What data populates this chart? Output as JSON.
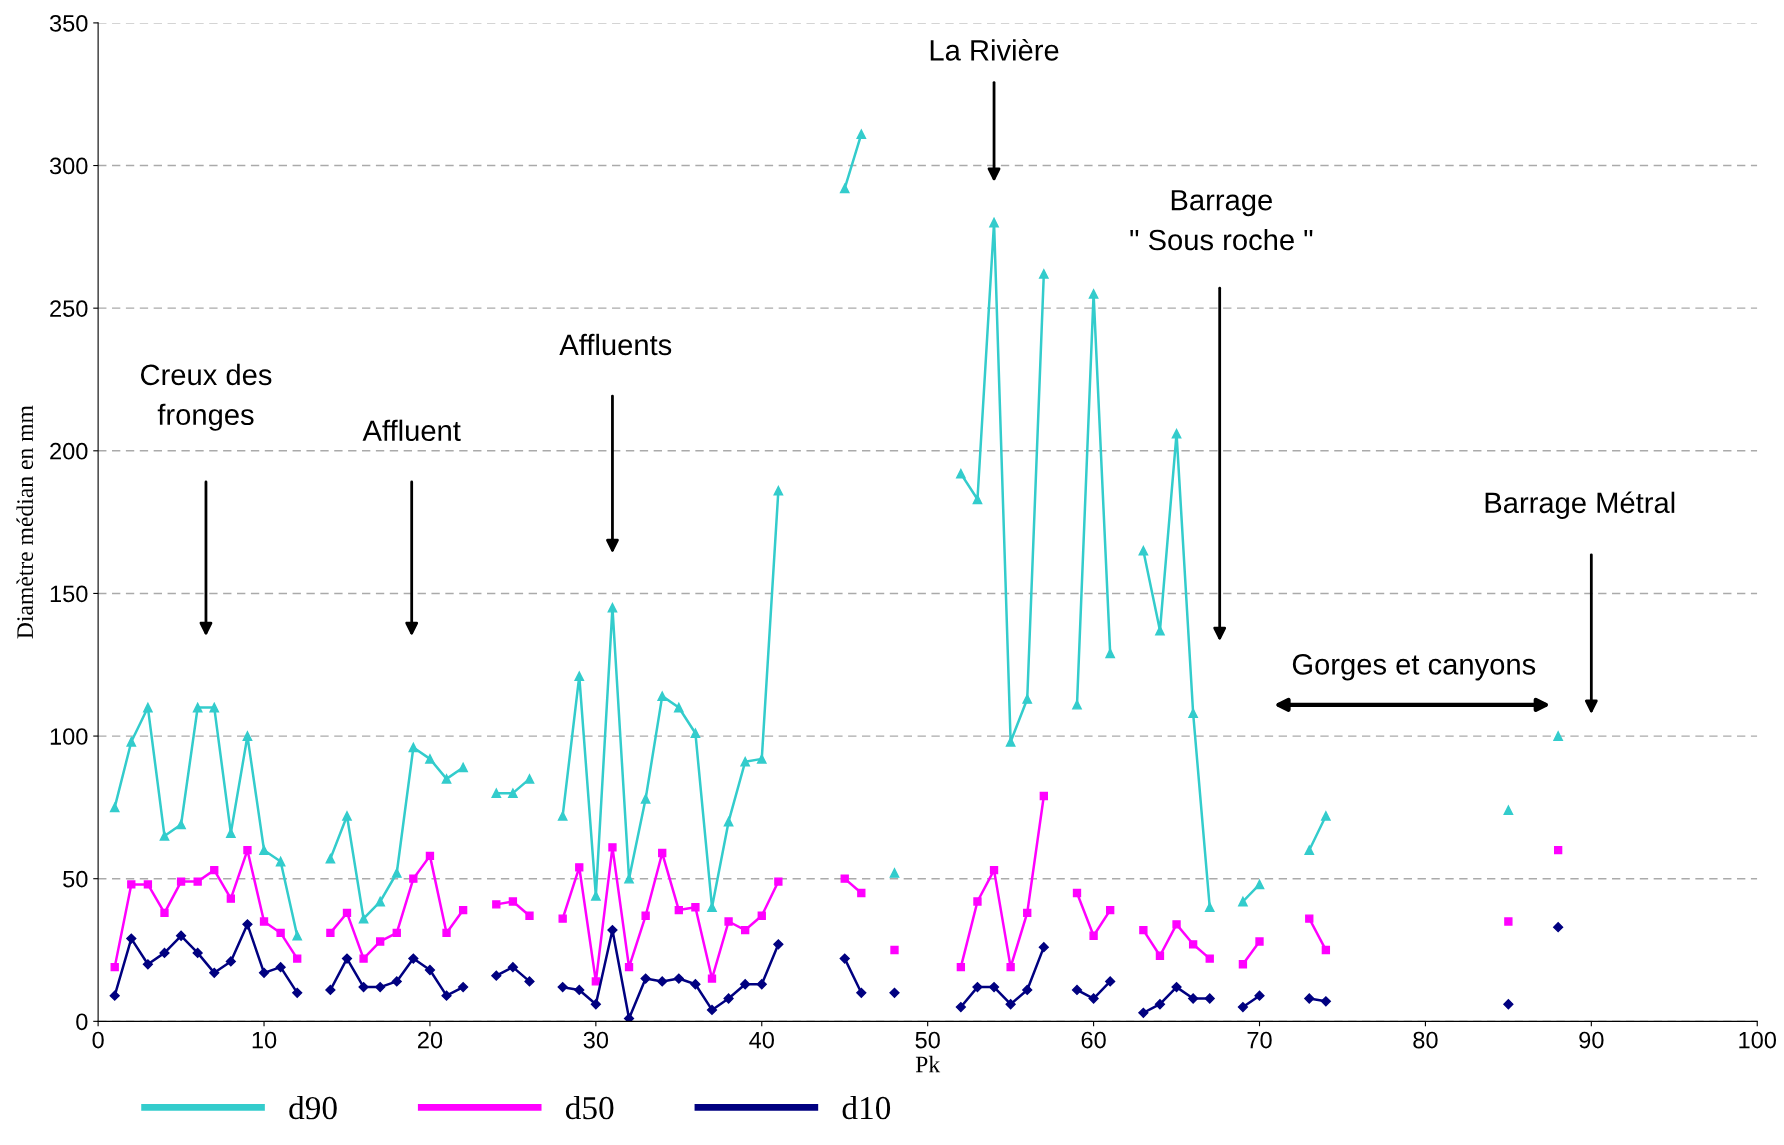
{
  "chart_data": {
    "type": "line",
    "xlabel": "Pk",
    "ylabel": "Diamètre médian en mm",
    "x": [
      1,
      2,
      3,
      4,
      5,
      6,
      7,
      8,
      9,
      10,
      11,
      12,
      13,
      14,
      15,
      16,
      17,
      18,
      19,
      20,
      21,
      22,
      23,
      24,
      25,
      26,
      27,
      28,
      29,
      30,
      31,
      32,
      33,
      34,
      35,
      36,
      37,
      38,
      39,
      40,
      41,
      42,
      43,
      44,
      45,
      46,
      47,
      48,
      49,
      50,
      51,
      52,
      53,
      54,
      55,
      56,
      57,
      58,
      59,
      60,
      61,
      62,
      63,
      64,
      65,
      66,
      67,
      68,
      69,
      70,
      71,
      72,
      73,
      74,
      75,
      76,
      77,
      78,
      79,
      80,
      81,
      82,
      83,
      84,
      85,
      86,
      87,
      88
    ],
    "series": [
      {
        "name": "d90",
        "color": "#33cccc",
        "marker": "triangle",
        "values": [
          75,
          98,
          110,
          65,
          69,
          110,
          110,
          66,
          100,
          60,
          56,
          30,
          null,
          57,
          72,
          36,
          42,
          52,
          96,
          92,
          85,
          89,
          null,
          80,
          80,
          85,
          null,
          72,
          121,
          44,
          145,
          50,
          78,
          114,
          110,
          101,
          40,
          70,
          91,
          92,
          186,
          null,
          null,
          null,
          292,
          311,
          null,
          52,
          null,
          null,
          null,
          192,
          183,
          280,
          98,
          113,
          262,
          null,
          111,
          255,
          129,
          null,
          165,
          137,
          206,
          108,
          40,
          null,
          42,
          48,
          null,
          null,
          60,
          72,
          null,
          null,
          null,
          null,
          null,
          null,
          null,
          null,
          null,
          null,
          74,
          null,
          null,
          100
        ]
      },
      {
        "name": "d50",
        "color": "#ff00ff",
        "marker": "square",
        "values": [
          19,
          48,
          48,
          38,
          49,
          49,
          53,
          43,
          60,
          35,
          31,
          22,
          null,
          31,
          38,
          22,
          28,
          31,
          50,
          58,
          31,
          39,
          null,
          41,
          42,
          37,
          null,
          36,
          54,
          14,
          61,
          19,
          37,
          59,
          39,
          40,
          15,
          35,
          32,
          37,
          49,
          null,
          null,
          null,
          50,
          45,
          null,
          25,
          null,
          null,
          null,
          19,
          42,
          53,
          19,
          38,
          79,
          null,
          45,
          30,
          39,
          null,
          32,
          23,
          34,
          27,
          22,
          null,
          20,
          28,
          null,
          null,
          36,
          25,
          null,
          null,
          null,
          null,
          null,
          null,
          null,
          null,
          null,
          null,
          35,
          null,
          null,
          60
        ]
      },
      {
        "name": "d10",
        "color": "#000080",
        "marker": "diamond",
        "values": [
          9,
          29,
          20,
          24,
          30,
          24,
          17,
          21,
          34,
          17,
          19,
          10,
          null,
          11,
          22,
          12,
          12,
          14,
          22,
          18,
          9,
          12,
          null,
          16,
          19,
          14,
          null,
          12,
          11,
          6,
          32,
          1,
          15,
          14,
          15,
          13,
          4,
          8,
          13,
          13,
          27,
          null,
          null,
          null,
          22,
          10,
          null,
          10,
          null,
          null,
          null,
          5,
          12,
          12,
          6,
          11,
          26,
          null,
          11,
          8,
          14,
          null,
          3,
          6,
          12,
          8,
          8,
          null,
          5,
          9,
          null,
          null,
          8,
          7,
          null,
          null,
          null,
          null,
          null,
          null,
          null,
          null,
          null,
          null,
          6,
          null,
          null,
          33
        ]
      }
    ],
    "xlim": [
      0,
      100
    ],
    "xticks": [
      0,
      10,
      20,
      30,
      40,
      50,
      60,
      70,
      80,
      90,
      100
    ],
    "ylim": [
      0,
      350
    ],
    "yticks": [
      0,
      50,
      100,
      150,
      200,
      250,
      300,
      350
    ],
    "grid": "y",
    "legend": "bottom",
    "line_style": "solid",
    "annotations": [
      "Creux des\nfronges",
      "Affluent",
      "Affluents",
      "La Rivière",
      "Barrage\n\" Sous roche \"",
      "Gorges et canyons",
      "Barrage Métral"
    ]
  }
}
